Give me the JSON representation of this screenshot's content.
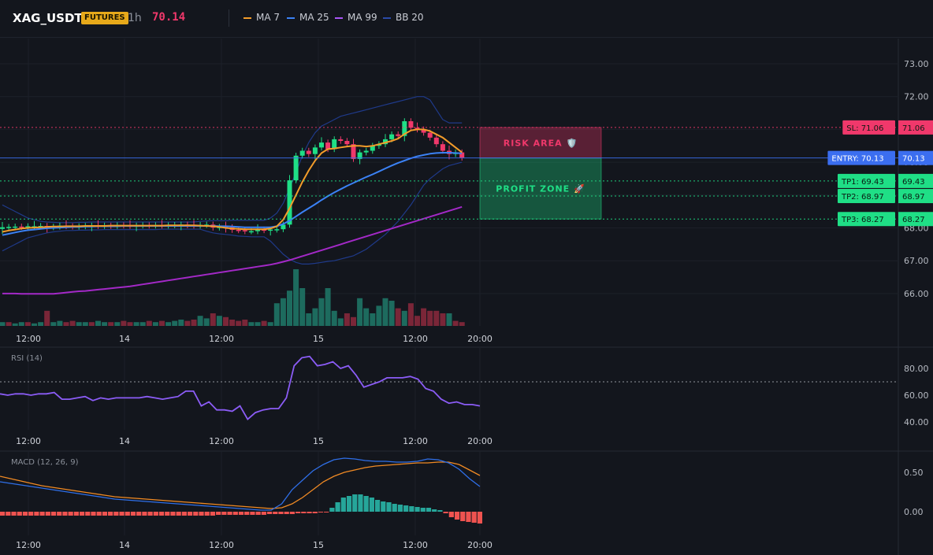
{
  "header": {
    "symbol": "XAG_USDT",
    "badge": "FUTURES",
    "timeframe": "1h",
    "last_price": "70.14",
    "legend": [
      {
        "label": "MA 7",
        "color": "#f39c2a"
      },
      {
        "label": "MA 25",
        "color": "#3b82f6"
      },
      {
        "label": "MA 99",
        "color": "#a855f7"
      },
      {
        "label": "BB 20",
        "color": "#1e3a8a"
      }
    ]
  },
  "colors": {
    "up": "#1fdf86",
    "down": "#f0386b",
    "bg": "#13161d",
    "grid": "#1c2029"
  },
  "chart_data": [
    {
      "type": "candlestick",
      "title": "XAG_USDT 1h",
      "x_ticks": [
        "12:00",
        "14",
        "12:00",
        "15",
        "12:00",
        "20:00"
      ],
      "y_ticks": [
        "66.00",
        "67.00",
        "68.00",
        "69.00",
        "70.00",
        "71.00",
        "72.00",
        "73.00"
      ],
      "ylim": [
        65.0,
        73.5
      ],
      "bars": 73,
      "close": [
        68.02,
        68.03,
        68.04,
        68.03,
        68.05,
        68.05,
        68.06,
        68.02,
        68.04,
        68.07,
        68.05,
        68.04,
        68.05,
        68.06,
        68.07,
        68.06,
        68.07,
        68.06,
        68.08,
        68.07,
        68.06,
        68.07,
        68.08,
        68.07,
        68.08,
        68.07,
        68.08,
        68.09,
        68.1,
        68.08,
        68.07,
        68.09,
        68.1,
        68.01,
        68.03,
        68.02,
        67.94,
        67.93,
        67.9,
        67.9,
        67.95,
        67.93,
        67.95,
        67.96,
        68.1,
        69.45,
        70.2,
        70.35,
        70.25,
        70.45,
        70.6,
        70.4,
        70.7,
        70.65,
        70.55,
        70.1,
        70.3,
        70.35,
        70.5,
        70.55,
        70.7,
        70.85,
        70.8,
        71.25,
        71.05,
        71.0,
        70.9,
        70.75,
        70.55,
        70.35,
        70.25,
        70.3,
        70.14
      ],
      "ma7": [
        67.88,
        67.92,
        67.95,
        67.98,
        68.0,
        68.01,
        68.02,
        68.03,
        68.04,
        68.04,
        68.05,
        68.05,
        68.05,
        68.06,
        68.06,
        68.06,
        68.06,
        68.07,
        68.07,
        68.07,
        68.07,
        68.07,
        68.07,
        68.07,
        68.07,
        68.07,
        68.08,
        68.08,
        68.08,
        68.08,
        68.08,
        68.07,
        68.06,
        68.05,
        68.03,
        68.0,
        67.98,
        67.97,
        67.96,
        67.96,
        67.96,
        67.96,
        67.98,
        68.05,
        68.25,
        68.6,
        69.0,
        69.4,
        69.75,
        70.05,
        70.28,
        70.4,
        70.42,
        70.45,
        70.48,
        70.5,
        70.5,
        70.48,
        70.5,
        70.55,
        70.6,
        70.65,
        70.72,
        70.86,
        70.97,
        71.0,
        71.0,
        70.95,
        70.85,
        70.75,
        70.6,
        70.45,
        70.3
      ],
      "ma25": [
        67.78,
        67.82,
        67.86,
        67.9,
        67.93,
        67.95,
        67.97,
        67.99,
        68.0,
        68.01,
        68.02,
        68.03,
        68.03,
        68.04,
        68.04,
        68.05,
        68.05,
        68.05,
        68.05,
        68.06,
        68.06,
        68.06,
        68.06,
        68.06,
        68.06,
        68.06,
        68.06,
        68.06,
        68.06,
        68.06,
        68.06,
        68.06,
        68.06,
        68.06,
        68.05,
        68.05,
        68.04,
        68.03,
        68.02,
        68.02,
        68.02,
        68.02,
        68.02,
        68.05,
        68.12,
        68.22,
        68.35,
        68.48,
        68.6,
        68.72,
        68.85,
        68.97,
        69.08,
        69.18,
        69.28,
        69.37,
        69.46,
        69.55,
        69.63,
        69.72,
        69.81,
        69.9,
        69.98,
        70.05,
        70.12,
        70.18,
        70.22,
        70.26,
        70.28,
        70.29,
        70.29,
        70.28,
        70.27
      ],
      "ma99": [
        66.0,
        66.0,
        66.0,
        65.99,
        65.99,
        65.99,
        65.99,
        65.99,
        65.99,
        66.01,
        66.03,
        66.05,
        66.07,
        66.08,
        66.1,
        66.12,
        66.14,
        66.16,
        66.18,
        66.2,
        66.22,
        66.25,
        66.28,
        66.31,
        66.34,
        66.37,
        66.4,
        66.43,
        66.46,
        66.49,
        66.52,
        66.55,
        66.58,
        66.61,
        66.64,
        66.67,
        66.7,
        66.73,
        66.76,
        66.79,
        66.82,
        66.85,
        66.88,
        66.92,
        66.97,
        67.02,
        67.08,
        67.14,
        67.2,
        67.26,
        67.32,
        67.38,
        67.44,
        67.5,
        67.56,
        67.62,
        67.68,
        67.74,
        67.8,
        67.86,
        67.92,
        67.98,
        68.04,
        68.1,
        68.16,
        68.22,
        68.28,
        68.34,
        68.4,
        68.46,
        68.52,
        68.58,
        68.64
      ],
      "bb_upper": [
        68.7,
        68.6,
        68.5,
        68.4,
        68.3,
        68.25,
        68.2,
        68.18,
        68.17,
        68.16,
        68.16,
        68.16,
        68.17,
        68.17,
        68.18,
        68.18,
        68.18,
        68.18,
        68.18,
        68.18,
        68.18,
        68.18,
        68.18,
        68.18,
        68.18,
        68.18,
        68.18,
        68.18,
        68.18,
        68.18,
        68.18,
        68.2,
        68.21,
        68.22,
        68.22,
        68.22,
        68.23,
        68.23,
        68.23,
        68.23,
        68.23,
        68.23,
        68.3,
        68.45,
        68.75,
        69.2,
        69.7,
        70.2,
        70.6,
        70.9,
        71.1,
        71.2,
        71.3,
        71.4,
        71.45,
        71.5,
        71.55,
        71.6,
        71.65,
        71.7,
        71.75,
        71.8,
        71.85,
        71.9,
        71.95,
        72.0,
        72.0,
        71.9,
        71.6,
        71.3,
        71.2,
        71.2,
        71.2
      ],
      "bb_lower": [
        67.3,
        67.4,
        67.5,
        67.6,
        67.7,
        67.75,
        67.8,
        67.85,
        67.88,
        67.9,
        67.92,
        67.92,
        67.93,
        67.93,
        67.94,
        67.94,
        67.95,
        67.95,
        67.95,
        67.95,
        67.95,
        67.95,
        67.95,
        67.95,
        67.95,
        67.96,
        67.96,
        67.96,
        67.96,
        67.96,
        67.96,
        67.96,
        67.9,
        67.85,
        67.82,
        67.8,
        67.78,
        67.75,
        67.74,
        67.73,
        67.73,
        67.73,
        67.6,
        67.4,
        67.2,
        67.05,
        66.95,
        66.9,
        66.9,
        66.92,
        66.95,
        66.98,
        67.0,
        67.05,
        67.1,
        67.15,
        67.25,
        67.35,
        67.5,
        67.65,
        67.8,
        68.0,
        68.2,
        68.45,
        68.7,
        69.0,
        69.3,
        69.5,
        69.65,
        69.8,
        69.9,
        69.95,
        70.0
      ],
      "volume": [
        3,
        3,
        2,
        3,
        3,
        2,
        3,
        12,
        3,
        4,
        3,
        4,
        3,
        3,
        3,
        4,
        3,
        3,
        3,
        4,
        3,
        3,
        3,
        4,
        3,
        4,
        3,
        4,
        5,
        4,
        5,
        8,
        6,
        10,
        8,
        7,
        5,
        4,
        5,
        3,
        3,
        4,
        3,
        18,
        22,
        28,
        45,
        30,
        10,
        14,
        22,
        30,
        12,
        6,
        10,
        7,
        22,
        14,
        10,
        16,
        22,
        20,
        14,
        12,
        18,
        8,
        14,
        12,
        12,
        10,
        10,
        4,
        3
      ],
      "volume_up": [
        true,
        false,
        true,
        true,
        false,
        true,
        true,
        false,
        true,
        true,
        false,
        false,
        true,
        true,
        false,
        true,
        true,
        false,
        true,
        false,
        false,
        true,
        true,
        false,
        true,
        false,
        true,
        true,
        true,
        false,
        false,
        true,
        true,
        false,
        true,
        false,
        false,
        false,
        false,
        true,
        true,
        false,
        true,
        true,
        true,
        true,
        true,
        true,
        true,
        true,
        true,
        true,
        true,
        true,
        false,
        false,
        true,
        true,
        true,
        true,
        true,
        true,
        false,
        true,
        false,
        false,
        false,
        false,
        false,
        false,
        true,
        false,
        false
      ],
      "levels": [
        {
          "label": "SL: 71.06",
          "axis_label": "71.06",
          "value": 71.06,
          "color": "#f0386b"
        },
        {
          "label": "ENTRY: 70.13",
          "axis_label": "70.13",
          "value": 70.13,
          "color": "#3b6ef0"
        },
        {
          "label": "TP1: 69.43",
          "axis_label": "69.43",
          "value": 69.43,
          "color": "#1fdf86"
        },
        {
          "label": "TP2: 68.97",
          "axis_label": "68.97",
          "value": 68.97,
          "color": "#1fdf86"
        },
        {
          "label": "TP3: 68.27",
          "axis_label": "68.27",
          "value": 68.27,
          "color": "#1fdf86"
        }
      ],
      "zones": [
        {
          "label": "RISK AREA 🛡️",
          "from": 70.13,
          "to": 71.06,
          "color": "#f0386b"
        },
        {
          "label": "PROFIT ZONE 🚀",
          "from": 68.27,
          "to": 70.13,
          "color": "#1fdf86"
        }
      ]
    },
    {
      "type": "line",
      "title": "RSI (14)",
      "y_ticks": [
        "40.00",
        "60.00",
        "80.00"
      ],
      "ylim": [
        35,
        92
      ],
      "overbought": 70,
      "values": [
        61,
        60,
        61,
        61,
        60,
        61,
        61,
        62,
        57,
        57,
        58,
        59,
        56,
        58,
        57,
        58,
        58,
        58,
        58,
        59,
        58,
        57,
        58,
        59,
        63,
        63,
        52,
        55,
        49,
        49,
        48,
        52,
        42,
        47,
        49,
        50,
        50,
        58,
        82,
        88,
        89,
        82,
        83,
        85,
        80,
        82,
        75,
        66,
        68,
        70,
        73,
        73,
        73,
        74,
        72,
        65,
        63,
        57,
        54,
        55,
        53,
        53,
        52
      ]
    },
    {
      "type": "bar",
      "title": "MACD (12, 26, 9)",
      "y_ticks": [
        "0.50",
        "0.00"
      ],
      "ylim": [
        -0.28,
        0.75
      ],
      "macd": [
        0.38,
        0.36,
        0.34,
        0.32,
        0.3,
        0.28,
        0.26,
        0.24,
        0.22,
        0.2,
        0.18,
        0.16,
        0.15,
        0.14,
        0.13,
        0.12,
        0.11,
        0.1,
        0.09,
        0.08,
        0.07,
        0.06,
        0.05,
        0.04,
        0.03,
        0.02,
        0.02,
        0.1,
        0.28,
        0.4,
        0.52,
        0.6,
        0.66,
        0.68,
        0.67,
        0.65,
        0.64,
        0.64,
        0.63,
        0.63,
        0.64,
        0.67,
        0.66,
        0.62,
        0.54,
        0.42,
        0.32
      ],
      "signal": [
        0.45,
        0.42,
        0.39,
        0.36,
        0.33,
        0.31,
        0.29,
        0.27,
        0.25,
        0.23,
        0.21,
        0.19,
        0.18,
        0.17,
        0.16,
        0.15,
        0.14,
        0.13,
        0.12,
        0.11,
        0.1,
        0.09,
        0.08,
        0.07,
        0.06,
        0.05,
        0.04,
        0.05,
        0.1,
        0.18,
        0.28,
        0.38,
        0.45,
        0.5,
        0.53,
        0.56,
        0.58,
        0.59,
        0.6,
        0.61,
        0.62,
        0.62,
        0.63,
        0.63,
        0.6,
        0.53,
        0.46
      ],
      "histogram": [
        -0.05,
        -0.05,
        -0.05,
        -0.05,
        -0.05,
        -0.05,
        -0.05,
        -0.05,
        -0.05,
        -0.05,
        -0.05,
        -0.05,
        -0.05,
        -0.05,
        -0.05,
        -0.05,
        -0.05,
        -0.05,
        -0.05,
        -0.05,
        -0.05,
        -0.05,
        -0.05,
        -0.05,
        -0.05,
        -0.05,
        -0.05,
        -0.05,
        -0.05,
        -0.05,
        -0.05,
        -0.05,
        -0.05,
        -0.05,
        -0.05,
        -0.05,
        -0.05,
        -0.05,
        -0.04,
        -0.04,
        -0.04,
        -0.04,
        -0.04,
        -0.04,
        -0.04,
        -0.04,
        -0.04,
        -0.03,
        -0.03,
        -0.03,
        -0.03,
        -0.03,
        -0.02,
        -0.02,
        -0.02,
        -0.02,
        -0.01,
        -0.01,
        0.05,
        0.12,
        0.18,
        0.2,
        0.22,
        0.22,
        0.2,
        0.18,
        0.15,
        0.13,
        0.12,
        0.1,
        0.09,
        0.08,
        0.07,
        0.06,
        0.05,
        0.05,
        0.03,
        0.02,
        -0.02,
        -0.07,
        -0.1,
        -0.12,
        -0.13,
        -0.14,
        -0.15
      ]
    }
  ]
}
